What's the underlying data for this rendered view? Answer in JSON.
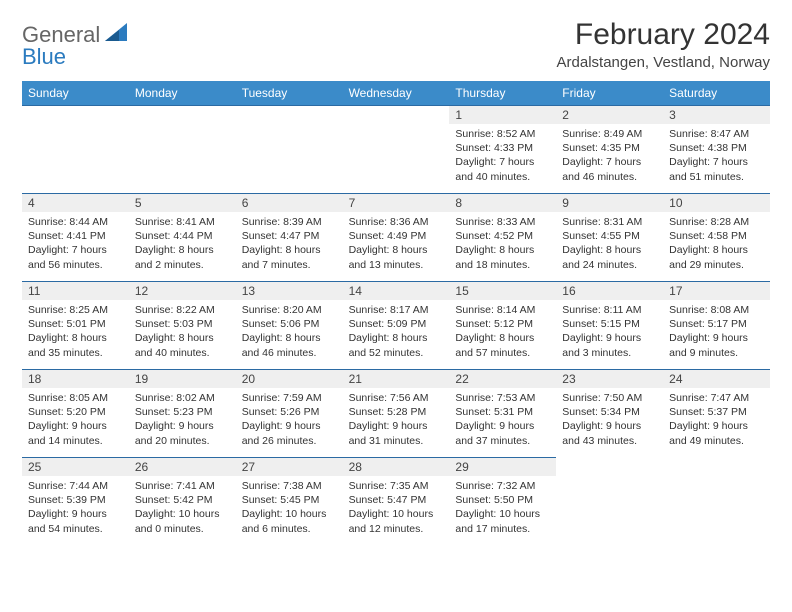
{
  "logo": {
    "general": "General",
    "blue": "Blue"
  },
  "title": "February 2024",
  "location": "Ardalstangen, Vestland, Norway",
  "colors": {
    "header_bg": "#3b8bc9",
    "header_text": "#ffffff",
    "border": "#2b6aa3",
    "daynum_bg": "#efefef",
    "text": "#333333",
    "logo_blue": "#2b7bbf",
    "logo_gray": "#666666",
    "background": "#ffffff"
  },
  "typography": {
    "title_fontsize": 30,
    "location_fontsize": 15,
    "weekday_fontsize": 12,
    "daynum_fontsize": 12,
    "body_fontsize": 10.5
  },
  "weekdays": [
    "Sunday",
    "Monday",
    "Tuesday",
    "Wednesday",
    "Thursday",
    "Friday",
    "Saturday"
  ],
  "leading_blanks": 4,
  "days": [
    {
      "n": "1",
      "sr": "8:52 AM",
      "ss": "4:33 PM",
      "dl": "7 hours and 40 minutes."
    },
    {
      "n": "2",
      "sr": "8:49 AM",
      "ss": "4:35 PM",
      "dl": "7 hours and 46 minutes."
    },
    {
      "n": "3",
      "sr": "8:47 AM",
      "ss": "4:38 PM",
      "dl": "7 hours and 51 minutes."
    },
    {
      "n": "4",
      "sr": "8:44 AM",
      "ss": "4:41 PM",
      "dl": "7 hours and 56 minutes."
    },
    {
      "n": "5",
      "sr": "8:41 AM",
      "ss": "4:44 PM",
      "dl": "8 hours and 2 minutes."
    },
    {
      "n": "6",
      "sr": "8:39 AM",
      "ss": "4:47 PM",
      "dl": "8 hours and 7 minutes."
    },
    {
      "n": "7",
      "sr": "8:36 AM",
      "ss": "4:49 PM",
      "dl": "8 hours and 13 minutes."
    },
    {
      "n": "8",
      "sr": "8:33 AM",
      "ss": "4:52 PM",
      "dl": "8 hours and 18 minutes."
    },
    {
      "n": "9",
      "sr": "8:31 AM",
      "ss": "4:55 PM",
      "dl": "8 hours and 24 minutes."
    },
    {
      "n": "10",
      "sr": "8:28 AM",
      "ss": "4:58 PM",
      "dl": "8 hours and 29 minutes."
    },
    {
      "n": "11",
      "sr": "8:25 AM",
      "ss": "5:01 PM",
      "dl": "8 hours and 35 minutes."
    },
    {
      "n": "12",
      "sr": "8:22 AM",
      "ss": "5:03 PM",
      "dl": "8 hours and 40 minutes."
    },
    {
      "n": "13",
      "sr": "8:20 AM",
      "ss": "5:06 PM",
      "dl": "8 hours and 46 minutes."
    },
    {
      "n": "14",
      "sr": "8:17 AM",
      "ss": "5:09 PM",
      "dl": "8 hours and 52 minutes."
    },
    {
      "n": "15",
      "sr": "8:14 AM",
      "ss": "5:12 PM",
      "dl": "8 hours and 57 minutes."
    },
    {
      "n": "16",
      "sr": "8:11 AM",
      "ss": "5:15 PM",
      "dl": "9 hours and 3 minutes."
    },
    {
      "n": "17",
      "sr": "8:08 AM",
      "ss": "5:17 PM",
      "dl": "9 hours and 9 minutes."
    },
    {
      "n": "18",
      "sr": "8:05 AM",
      "ss": "5:20 PM",
      "dl": "9 hours and 14 minutes."
    },
    {
      "n": "19",
      "sr": "8:02 AM",
      "ss": "5:23 PM",
      "dl": "9 hours and 20 minutes."
    },
    {
      "n": "20",
      "sr": "7:59 AM",
      "ss": "5:26 PM",
      "dl": "9 hours and 26 minutes."
    },
    {
      "n": "21",
      "sr": "7:56 AM",
      "ss": "5:28 PM",
      "dl": "9 hours and 31 minutes."
    },
    {
      "n": "22",
      "sr": "7:53 AM",
      "ss": "5:31 PM",
      "dl": "9 hours and 37 minutes."
    },
    {
      "n": "23",
      "sr": "7:50 AM",
      "ss": "5:34 PM",
      "dl": "9 hours and 43 minutes."
    },
    {
      "n": "24",
      "sr": "7:47 AM",
      "ss": "5:37 PM",
      "dl": "9 hours and 49 minutes."
    },
    {
      "n": "25",
      "sr": "7:44 AM",
      "ss": "5:39 PM",
      "dl": "9 hours and 54 minutes."
    },
    {
      "n": "26",
      "sr": "7:41 AM",
      "ss": "5:42 PM",
      "dl": "10 hours and 0 minutes."
    },
    {
      "n": "27",
      "sr": "7:38 AM",
      "ss": "5:45 PM",
      "dl": "10 hours and 6 minutes."
    },
    {
      "n": "28",
      "sr": "7:35 AM",
      "ss": "5:47 PM",
      "dl": "10 hours and 12 minutes."
    },
    {
      "n": "29",
      "sr": "7:32 AM",
      "ss": "5:50 PM",
      "dl": "10 hours and 17 minutes."
    }
  ],
  "labels": {
    "sunrise": "Sunrise: ",
    "sunset": "Sunset: ",
    "daylight": "Daylight: "
  }
}
